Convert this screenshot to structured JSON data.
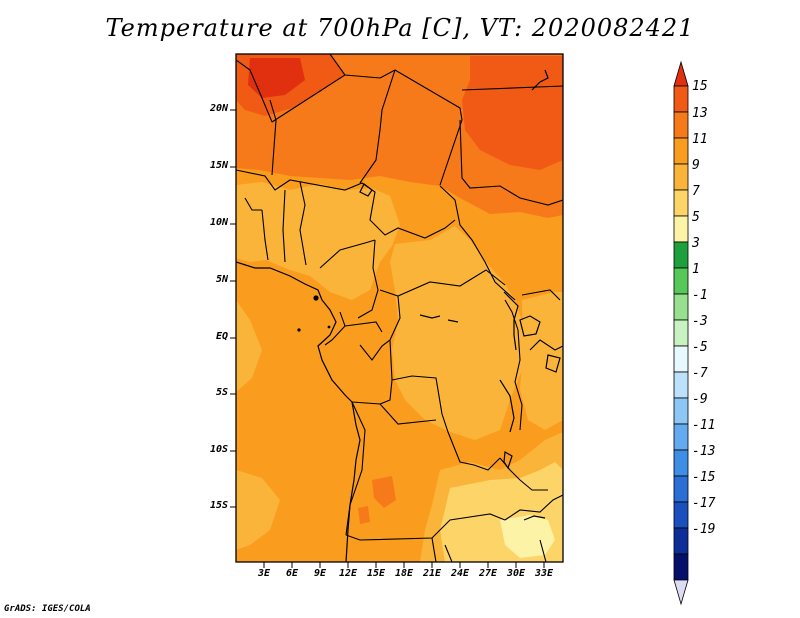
{
  "title": "Temperature at 700hPa [C], VT: 2020082421",
  "credit": "GrADS: IGES/COLA",
  "lat_labels": [
    "20N",
    "15N",
    "10N",
    "5N",
    "EQ",
    "5S",
    "10S",
    "15S"
  ],
  "lon_labels": [
    "3E",
    "6E",
    "9E",
    "12E",
    "15E",
    "18E",
    "21E",
    "24E",
    "27E",
    "30E",
    "33E"
  ],
  "colorbar": {
    "levels": [
      "15",
      "13",
      "11",
      "9",
      "7",
      "5",
      "3",
      "1",
      "-1",
      "-3",
      "-5",
      "-7",
      "-9",
      "-11",
      "-13",
      "-15",
      "-17",
      "-19"
    ],
    "colors": [
      "#e03010",
      "#f05a14",
      "#f77a1a",
      "#fa9c1e",
      "#fbb43a",
      "#fdd468",
      "#fdf3a6",
      "#1ea03c",
      "#56c85a",
      "#96e090",
      "#c8f2c2",
      "#e8f8ff",
      "#bde1fa",
      "#8cc7f5",
      "#64aaf0",
      "#3f8ee6",
      "#2a6ed6",
      "#1a4fbe",
      "#0c2e96",
      "#04106a",
      "#dcdcf4"
    ]
  },
  "map": {
    "extent": {
      "lon_min": 0,
      "lon_max": 35,
      "lat_min": -20,
      "lat_max": 24.5
    },
    "fill_colors": {
      "c13": "#f05a14",
      "c11": "#f77a1a",
      "c9": "#fa9c1e",
      "c7": "#fbb43a",
      "c5": "#fdd468",
      "c3": "#fdf3a6",
      "c15": "#e03010"
    }
  }
}
